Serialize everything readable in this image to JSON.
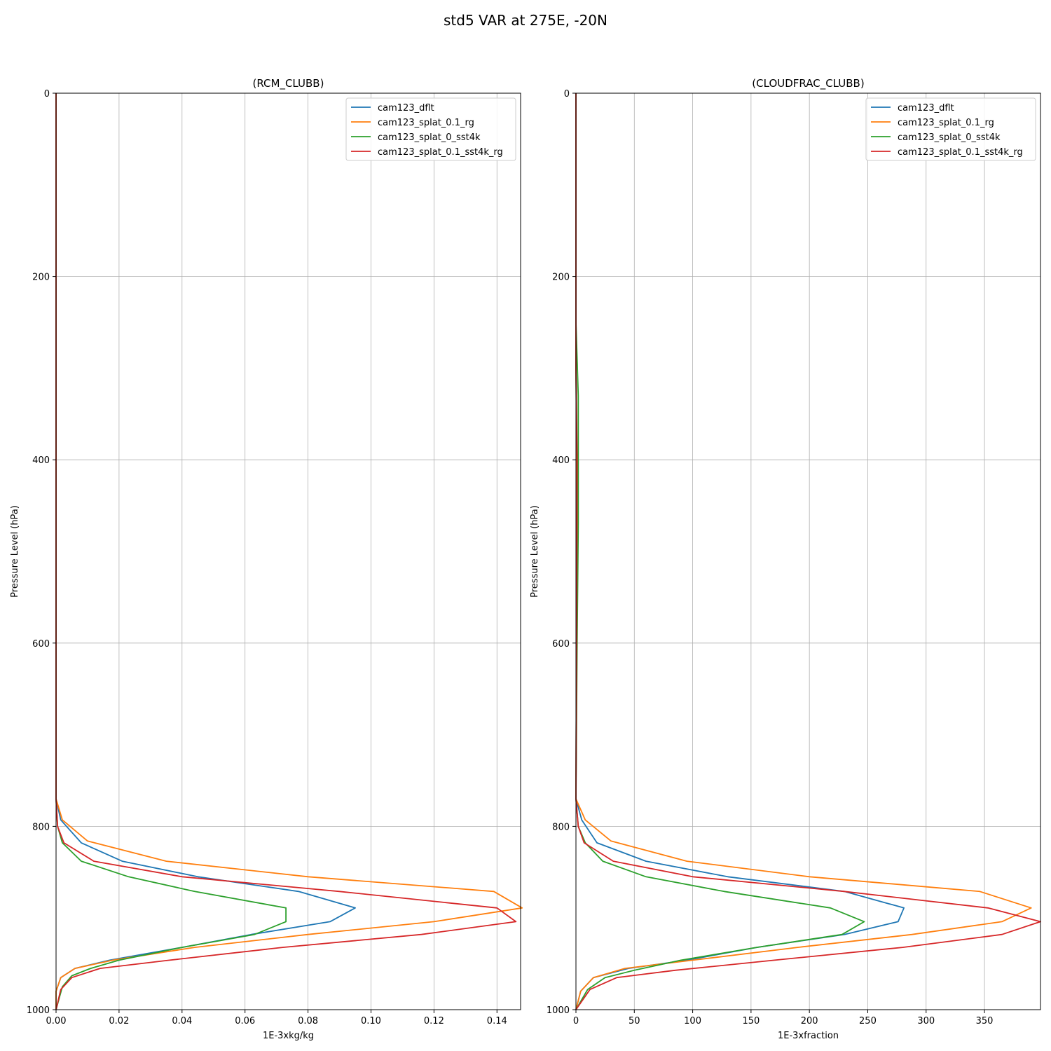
{
  "figure": {
    "title": "std5 VAR at 275E, -20N"
  },
  "chart_data": [
    {
      "type": "line",
      "orientation": "vertical-profile",
      "title": "(RCM_CLUBB)",
      "xlabel": "1E-3xkg/kg",
      "ylabel": "Pressure Level (hPa)",
      "xlim": [
        0,
        0.1475
      ],
      "ylim": [
        1000,
        0
      ],
      "xticks": [
        0,
        0.02,
        0.04,
        0.06,
        0.08,
        0.1,
        0.12,
        0.14
      ],
      "xtick_labels": [
        "0.00",
        "0.02",
        "0.04",
        "0.06",
        "0.08",
        "0.10",
        "0.12",
        "0.14"
      ],
      "yticks": [
        0,
        200,
        400,
        600,
        800,
        1000
      ],
      "ytick_labels": [
        "0",
        "200",
        "400",
        "600",
        "800",
        "1000"
      ],
      "grid": true,
      "legend_position": "top-right",
      "series": [
        {
          "name": "cam123_dflt",
          "color": "#1f77b4",
          "points": [
            [
              0,
              0
            ],
            [
              0,
              300
            ],
            [
              0,
              770
            ],
            [
              0.0015,
              793
            ],
            [
              0.008,
              818
            ],
            [
              0.021,
              838
            ],
            [
              0.045,
              855
            ],
            [
              0.077,
              871
            ],
            [
              0.095,
              889
            ],
            [
              0.087,
              904
            ],
            [
              0.062,
              918
            ],
            [
              0.04,
              932
            ],
            [
              0.017,
              946
            ],
            [
              0.006,
              955
            ],
            [
              0.0015,
              965
            ],
            [
              0,
              980
            ],
            [
              0,
              1000
            ]
          ]
        },
        {
          "name": "cam123_splat_0.1_rg",
          "color": "#ff7f0e",
          "points": [
            [
              0,
              0
            ],
            [
              0,
              300
            ],
            [
              0,
              770
            ],
            [
              0.002,
              793
            ],
            [
              0.01,
              816
            ],
            [
              0.035,
              838
            ],
            [
              0.08,
              855
            ],
            [
              0.139,
              871
            ],
            [
              0.148,
              889
            ],
            [
              0.12,
              904
            ],
            [
              0.08,
              918
            ],
            [
              0.044,
              932
            ],
            [
              0.018,
              946
            ],
            [
              0.006,
              955
            ],
            [
              0.0015,
              965
            ],
            [
              0,
              980
            ],
            [
              0,
              1000
            ]
          ]
        },
        {
          "name": "cam123_splat_0_sst4k",
          "color": "#2ca02c",
          "points": [
            [
              0,
              0
            ],
            [
              0,
              300
            ],
            [
              0,
              770
            ],
            [
              0.0005,
              800
            ],
            [
              0.002,
              818
            ],
            [
              0.008,
              838
            ],
            [
              0.023,
              855
            ],
            [
              0.044,
              871
            ],
            [
              0.073,
              889
            ],
            [
              0.073,
              904
            ],
            [
              0.063,
              918
            ],
            [
              0.04,
              932
            ],
            [
              0.02,
              946
            ],
            [
              0.011,
              955
            ],
            [
              0.005,
              963
            ],
            [
              0.002,
              975
            ],
            [
              0,
              1000
            ]
          ]
        },
        {
          "name": "cam123_splat_0.1_sst4k_rg",
          "color": "#d62728",
          "points": [
            [
              0,
              0
            ],
            [
              0,
              300
            ],
            [
              0,
              770
            ],
            [
              0.0005,
              800
            ],
            [
              0.0025,
              818
            ],
            [
              0.012,
              838
            ],
            [
              0.04,
              855
            ],
            [
              0.09,
              871
            ],
            [
              0.14,
              889
            ],
            [
              0.146,
              904
            ],
            [
              0.116,
              918
            ],
            [
              0.072,
              932
            ],
            [
              0.036,
              946
            ],
            [
              0.014,
              955
            ],
            [
              0.005,
              965
            ],
            [
              0.0015,
              978
            ],
            [
              0,
              1000
            ]
          ]
        }
      ]
    },
    {
      "type": "line",
      "orientation": "vertical-profile",
      "title": "(CLOUDFRAC_CLUBB)",
      "xlabel": "1E-3xfraction",
      "ylabel": "Pressure Level (hPa)",
      "xlim": [
        0,
        398
      ],
      "ylim": [
        1000,
        0
      ],
      "xticks": [
        0,
        50,
        100,
        150,
        200,
        250,
        300,
        350
      ],
      "xtick_labels": [
        "0",
        "50",
        "100",
        "150",
        "200",
        "250",
        "300",
        "350"
      ],
      "yticks": [
        0,
        200,
        400,
        600,
        800,
        1000
      ],
      "ytick_labels": [
        "0",
        "200",
        "400",
        "600",
        "800",
        "1000"
      ],
      "grid": true,
      "legend_position": "top-right",
      "series": [
        {
          "name": "cam123_dflt",
          "color": "#1f77b4",
          "points": [
            [
              0,
              0
            ],
            [
              0,
              300
            ],
            [
              1,
              450
            ],
            [
              0.5,
              600
            ],
            [
              0,
              770
            ],
            [
              5,
              793
            ],
            [
              18,
              818
            ],
            [
              60,
              838
            ],
            [
              130,
              855
            ],
            [
              230,
              871
            ],
            [
              281,
              889
            ],
            [
              276,
              904
            ],
            [
              230,
              918
            ],
            [
              155,
              932
            ],
            [
              95,
              946
            ],
            [
              45,
              955
            ],
            [
              15,
              965
            ],
            [
              4,
              980
            ],
            [
              0,
              1000
            ]
          ]
        },
        {
          "name": "cam123_splat_0.1_rg",
          "color": "#ff7f0e",
          "points": [
            [
              0,
              0
            ],
            [
              0,
              300
            ],
            [
              1,
              450
            ],
            [
              0.5,
              600
            ],
            [
              0,
              770
            ],
            [
              8,
              793
            ],
            [
              30,
              816
            ],
            [
              95,
              838
            ],
            [
              200,
              855
            ],
            [
              346,
              871
            ],
            [
              390,
              889
            ],
            [
              365,
              904
            ],
            [
              288,
              918
            ],
            [
              190,
              932
            ],
            [
              100,
              946
            ],
            [
              42,
              955
            ],
            [
              15,
              965
            ],
            [
              4,
              980
            ],
            [
              0,
              1000
            ]
          ]
        },
        {
          "name": "cam123_splat_0_sst4k",
          "color": "#2ca02c",
          "points": [
            [
              0,
              0
            ],
            [
              0,
              250
            ],
            [
              2,
              330
            ],
            [
              2,
              400
            ],
            [
              2,
              470
            ],
            [
              1,
              600
            ],
            [
              0,
              770
            ],
            [
              2,
              800
            ],
            [
              8,
              818
            ],
            [
              23,
              838
            ],
            [
              60,
              855
            ],
            [
              127,
              871
            ],
            [
              218,
              889
            ],
            [
              247,
              904
            ],
            [
              228,
              918
            ],
            [
              155,
              932
            ],
            [
              90,
              946
            ],
            [
              50,
              957
            ],
            [
              25,
              965
            ],
            [
              10,
              978
            ],
            [
              0,
              1000
            ]
          ]
        },
        {
          "name": "cam123_splat_0.1_sst4k_rg",
          "color": "#d62728",
          "points": [
            [
              0,
              0
            ],
            [
              0,
              300
            ],
            [
              1,
              400
            ],
            [
              0.5,
              600
            ],
            [
              0,
              770
            ],
            [
              2,
              800
            ],
            [
              7,
              818
            ],
            [
              32,
              838
            ],
            [
              100,
              855
            ],
            [
              230,
              871
            ],
            [
              353,
              889
            ],
            [
              398,
              904
            ],
            [
              365,
              918
            ],
            [
              280,
              932
            ],
            [
              170,
              946
            ],
            [
              85,
              957
            ],
            [
              35,
              965
            ],
            [
              12,
              978
            ],
            [
              0,
              1000
            ]
          ]
        }
      ]
    }
  ]
}
